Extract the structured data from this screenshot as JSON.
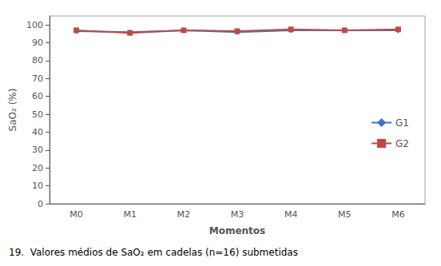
{
  "chart_data": {
    "type": "line",
    "categories": [
      "M0",
      "M1",
      "M2",
      "M3",
      "M4",
      "M5",
      "M6"
    ],
    "series": [
      {
        "name": "G1",
        "color": "#4472C4",
        "marker": "diamond",
        "values": [
          96.5,
          96.0,
          97.0,
          96.0,
          97.0,
          97.0,
          97.0
        ]
      },
      {
        "name": "G2",
        "color": "#BE4B48",
        "marker": "square",
        "values": [
          97.0,
          95.5,
          97.0,
          96.5,
          97.5,
          97.0,
          97.5
        ]
      }
    ],
    "xlabel": "Momentos",
    "ylabel": "SaO₂ (%)",
    "ylim": [
      0,
      105
    ],
    "yticks": [
      0,
      10,
      20,
      30,
      40,
      50,
      60,
      70,
      80,
      90,
      100
    ],
    "grid": false,
    "legend": "right",
    "caption": "19.  Valores médios de SaO₂ em cadelas (n=16) submetidas"
  }
}
